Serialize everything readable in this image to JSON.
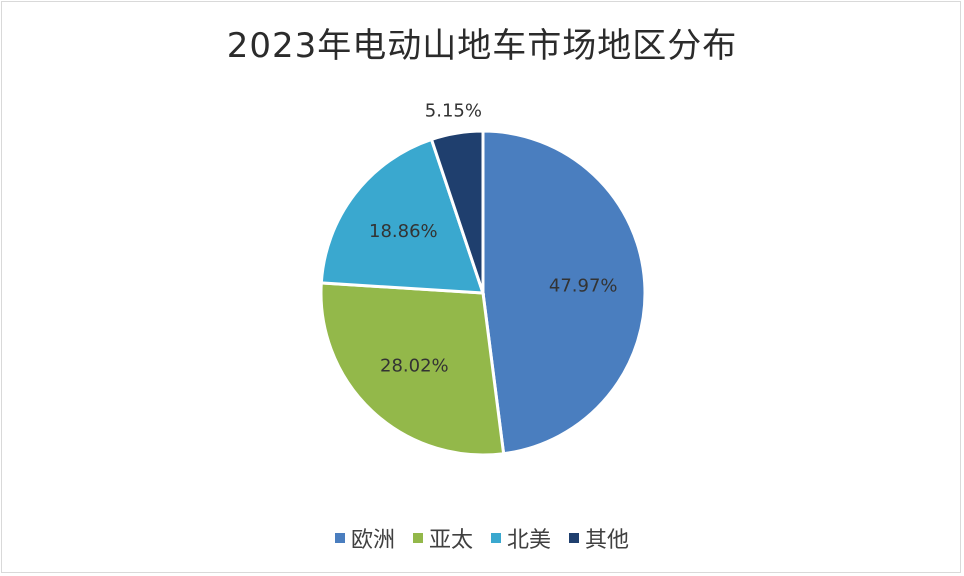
{
  "chart_data": {
    "type": "pie",
    "title": "2023年电动山地车市场地区分布",
    "categories": [
      "欧洲",
      "亚太",
      "北美",
      "其他"
    ],
    "values": [
      47.97,
      28.02,
      18.86,
      5.15
    ],
    "labels": [
      "47.97%",
      "28.02%",
      "18.86%",
      "5.15%"
    ],
    "colors": [
      "#4a7ebf",
      "#93b84a",
      "#3aa8cf",
      "#1f3f6e"
    ],
    "legend_position": "bottom"
  }
}
